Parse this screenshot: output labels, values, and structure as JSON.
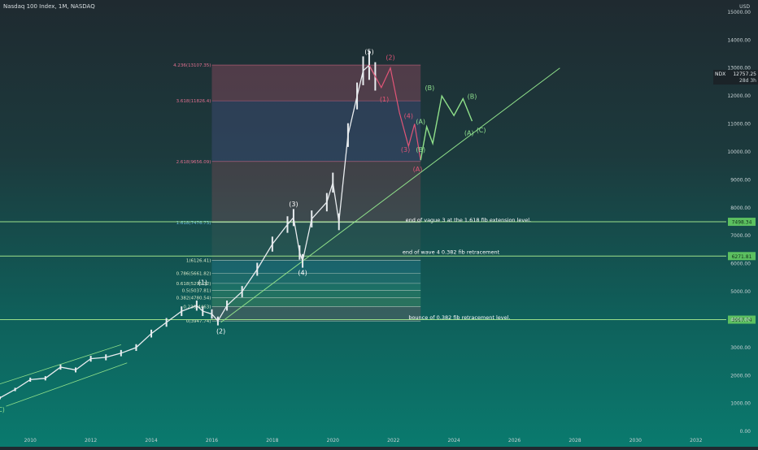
{
  "header": {
    "title": "Nasdaq 100 Index, 1M, NASDAQ",
    "currency": "USD"
  },
  "chart_data": {
    "type": "candlestick",
    "symbol_tag": "NDX",
    "last_price": "12757.25",
    "countdown": "28d 3h",
    "x_ticks": [
      "2010",
      "2012",
      "2014",
      "2016",
      "2018",
      "2020",
      "2022",
      "2024",
      "2026",
      "2028",
      "2030",
      "2032"
    ],
    "x_tick_years": [
      2010,
      2012,
      2014,
      2016,
      2018,
      2020,
      2022,
      2024,
      2026,
      2028,
      2030,
      2032
    ],
    "y_ticks": [
      "0.00",
      "1000.00",
      "2000.00",
      "3000.00",
      "4000.00",
      "5000.00",
      "6000.00",
      "7000.00",
      "8000.00",
      "9000.00",
      "10000.00",
      "11000.00",
      "12000.00",
      "13000.00",
      "14000.00",
      "15000.00"
    ],
    "y_tick_values": [
      0,
      1000,
      2000,
      3000,
      4000,
      5000,
      6000,
      7000,
      8000,
      9000,
      10000,
      11000,
      12000,
      13000,
      14000,
      15000
    ],
    "xlim": [
      2009,
      2033
    ],
    "ylim": [
      -200,
      15200
    ],
    "price_series": [
      [
        2009.0,
        1200
      ],
      [
        2009.5,
        1500
      ],
      [
        2010.0,
        1850
      ],
      [
        2010.5,
        1900
      ],
      [
        2011.0,
        2300
      ],
      [
        2011.5,
        2200
      ],
      [
        2012.0,
        2600
      ],
      [
        2012.5,
        2650
      ],
      [
        2013.0,
        2800
      ],
      [
        2013.5,
        3000
      ],
      [
        2014.0,
        3500
      ],
      [
        2014.5,
        3900
      ],
      [
        2015.0,
        4300
      ],
      [
        2015.5,
        4500
      ],
      [
        2015.7,
        4300
      ],
      [
        2016.0,
        4200
      ],
      [
        2016.2,
        3950
      ],
      [
        2016.5,
        4500
      ],
      [
        2017.0,
        5000
      ],
      [
        2017.5,
        5800
      ],
      [
        2018.0,
        6700
      ],
      [
        2018.5,
        7400
      ],
      [
        2018.7,
        7650
      ],
      [
        2018.9,
        6400
      ],
      [
        2019.0,
        6100
      ],
      [
        2019.3,
        7600
      ],
      [
        2019.8,
        8200
      ],
      [
        2020.0,
        8900
      ],
      [
        2020.2,
        7500
      ],
      [
        2020.5,
        10600
      ],
      [
        2020.8,
        12000
      ],
      [
        2021.0,
        12900
      ],
      [
        2021.2,
        13100
      ],
      [
        2021.4,
        12700
      ]
    ],
    "right_tags": [
      {
        "label": "7498.34",
        "value": 7498.34
      },
      {
        "label": "6271.81",
        "value": 6271.81
      },
      {
        "label": "3997.74",
        "value": 3997.74
      }
    ],
    "fib_levels": [
      {
        "label": "4.236(13107.35)",
        "value": 13107
      },
      {
        "label": "3.618(11826.4)",
        "value": 11826
      },
      {
        "label": "2.618(9656.09)",
        "value": 9656
      },
      {
        "label": "1.618(7476.73)",
        "value": 7477
      },
      {
        "label": "1(6126.41)",
        "value": 6126
      },
      {
        "label": "0.786(5661.82)",
        "value": 5662
      },
      {
        "label": "0.618(5295.32)",
        "value": 5295
      },
      {
        "label": "0.5(5037.81)",
        "value": 5038
      },
      {
        "label": "0.382(4780.54)",
        "value": 4781
      },
      {
        "label": "0.236(4463)",
        "value": 4463
      },
      {
        "label": "0(3947.74)",
        "value": 3948
      }
    ],
    "wave_labels": [
      {
        "text": "(1)",
        "x": 2015.7,
        "y": 5250,
        "color": "#ffffff"
      },
      {
        "text": "(2)",
        "x": 2016.3,
        "y": 3500,
        "color": "#ffffff"
      },
      {
        "text": "(3)",
        "x": 2018.7,
        "y": 8050,
        "color": "#ffffff"
      },
      {
        "text": "(4)",
        "x": 2019.0,
        "y": 5600,
        "color": "#ffffff"
      },
      {
        "text": "(5)",
        "x": 2021.2,
        "y": 13500,
        "color": "#ffffff"
      },
      {
        "text": "(C)",
        "x": 2009.0,
        "y": 700,
        "color": "#8fe08f"
      },
      {
        "text": "(2)",
        "x": 2021.9,
        "y": 13300,
        "color": "#e05577"
      },
      {
        "text": "(1)",
        "x": 2021.7,
        "y": 11800,
        "color": "#e05577"
      },
      {
        "text": "(4)",
        "x": 2022.5,
        "y": 11200,
        "color": "#e05577"
      },
      {
        "text": "(3)",
        "x": 2022.4,
        "y": 10000,
        "color": "#e05577"
      },
      {
        "text": "(A)",
        "x": 2022.8,
        "y": 9300,
        "color": "#e05577"
      },
      {
        "text": "(B)",
        "x": 2023.2,
        "y": 12200,
        "color": "#8fe08f"
      },
      {
        "text": "(A)",
        "x": 2022.9,
        "y": 11000,
        "color": "#8fe08f"
      },
      {
        "text": "(B)",
        "x": 2022.9,
        "y": 10000,
        "color": "#8fe08f"
      },
      {
        "text": "(B)",
        "x": 2024.6,
        "y": 11900,
        "color": "#8fe08f"
      },
      {
        "text": "(A)",
        "x": 2024.5,
        "y": 10600,
        "color": "#8fe08f"
      },
      {
        "text": "(C)",
        "x": 2024.9,
        "y": 10700,
        "color": "#8fe08f"
      }
    ],
    "annotations": [
      {
        "text": "end of vague 3 at the 1.618 fib extension level.",
        "x": 2022.4,
        "y": 7500
      },
      {
        "text": "end of wave 4     0.382 fib retracement",
        "x": 2022.3,
        "y": 6350
      },
      {
        "text": "bounce of 0.382 fib retracement level.",
        "x": 2022.5,
        "y": 4020
      }
    ],
    "grid": false,
    "legend": "none"
  }
}
